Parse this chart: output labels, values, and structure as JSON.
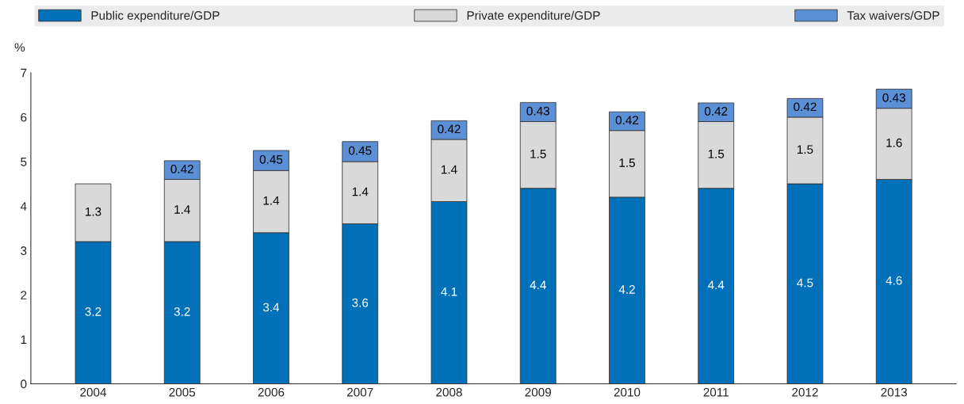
{
  "chart_data": {
    "type": "bar",
    "stacked": true,
    "ylabel": "%",
    "categories": [
      "2004",
      "2005",
      "2006",
      "2007",
      "2008",
      "2009",
      "2010",
      "2011",
      "2012",
      "2013"
    ],
    "series": [
      {
        "name": "Public expenditure/GDP",
        "color": "#0070b8",
        "values": [
          3.2,
          3.2,
          3.4,
          3.6,
          4.1,
          4.4,
          4.2,
          4.4,
          4.5,
          4.6
        ]
      },
      {
        "name": "Private expenditure/GDP",
        "color": "#d9d9d9",
        "values": [
          1.3,
          1.4,
          1.4,
          1.4,
          1.4,
          1.5,
          1.5,
          1.5,
          1.5,
          1.6
        ]
      },
      {
        "name": "Tax waivers/GDP",
        "color": "#5b8fd6",
        "values": [
          null,
          0.42,
          0.45,
          0.45,
          0.42,
          0.43,
          0.42,
          0.42,
          0.42,
          0.43
        ]
      }
    ],
    "ylim": [
      0,
      7
    ],
    "yticks": [
      0,
      1,
      2,
      3,
      4,
      5,
      6,
      7
    ],
    "data_labels": true,
    "legend": "top",
    "grid": false
  }
}
